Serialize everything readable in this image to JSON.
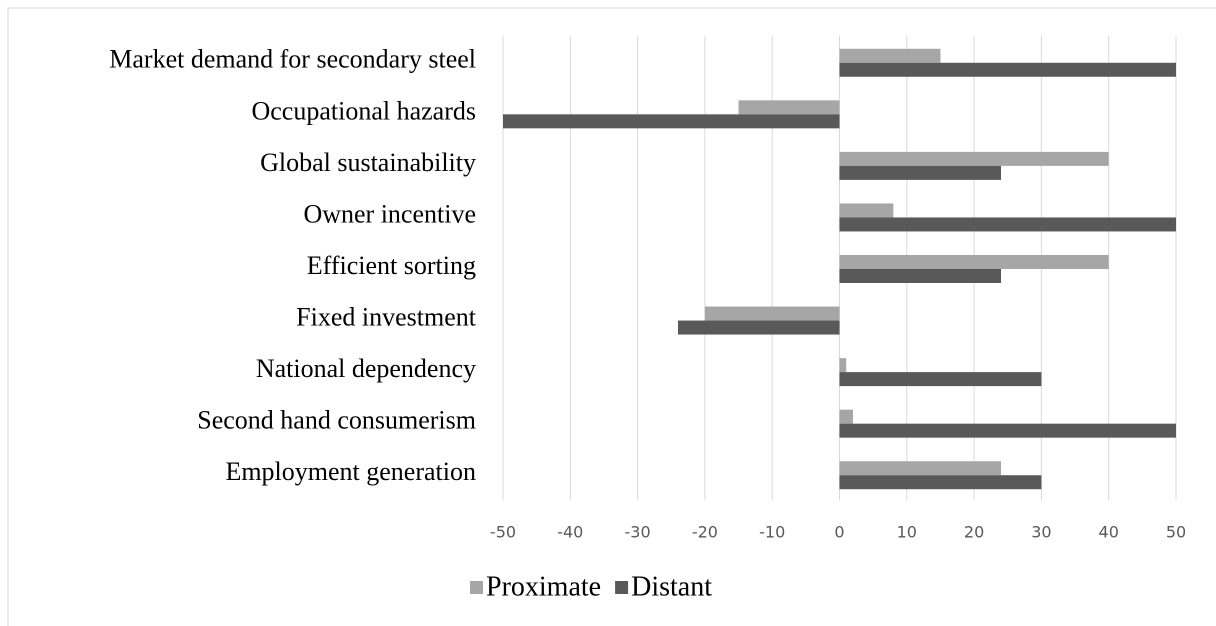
{
  "chart_data": {
    "type": "hbar",
    "categories": [
      "Market demand for secondary steel",
      "Occupational hazards",
      "Global sustainability",
      "Owner incentive",
      "Efficient sorting",
      "Fixed investment",
      "National dependency",
      "Second hand consumerism",
      "Employment generation"
    ],
    "series": [
      {
        "name": "Proximate",
        "color": "#a6a6a6",
        "values": [
          15,
          -15,
          40,
          8,
          40,
          -20,
          1,
          2,
          24
        ]
      },
      {
        "name": "Distant",
        "color": "#595959",
        "values": [
          50,
          -50,
          24,
          50,
          24,
          -24,
          30,
          50,
          30
        ]
      }
    ],
    "xlim": [
      -50,
      50
    ],
    "xticks": [
      -50,
      -40,
      -30,
      -20,
      -10,
      0,
      10,
      20,
      30,
      40,
      50
    ],
    "grid": true,
    "legend": "bottom"
  }
}
